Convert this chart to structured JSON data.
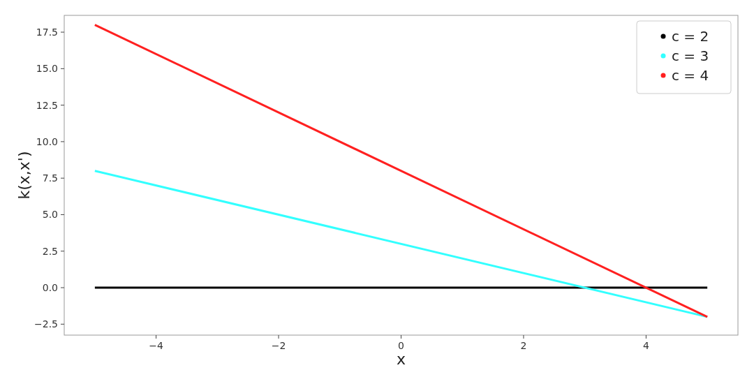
{
  "chart_data": {
    "type": "line",
    "xlabel": "x",
    "ylabel": "k(x,x')",
    "x": [
      -5,
      5
    ],
    "series": [
      {
        "name": "c = 2",
        "color": "#000000",
        "values": [
          0,
          0
        ]
      },
      {
        "name": "c = 3",
        "color": "#33ffff",
        "values": [
          8,
          -2
        ]
      },
      {
        "name": "c = 4",
        "color": "#ff2020",
        "values": [
          18,
          -2
        ]
      }
    ],
    "xlim": [
      -5.5,
      5.5
    ],
    "xticks": [
      {
        "value": -4,
        "label": "−4"
      },
      {
        "value": -2,
        "label": "−2"
      },
      0,
      2,
      4
    ],
    "ylim": [
      -3.25,
      18.65
    ],
    "yticks": [
      {
        "value": -2.5,
        "label": "−2.5"
      },
      {
        "value": 0,
        "label": "0.0"
      },
      2.5,
      {
        "value": 5,
        "label": "5.0"
      },
      7.5,
      {
        "value": 10,
        "label": "10.0"
      },
      12.5,
      {
        "value": 15,
        "label": "15.0"
      },
      17.5
    ],
    "legend": "top right",
    "grid": false,
    "marker": "none",
    "line_style": "solid"
  }
}
